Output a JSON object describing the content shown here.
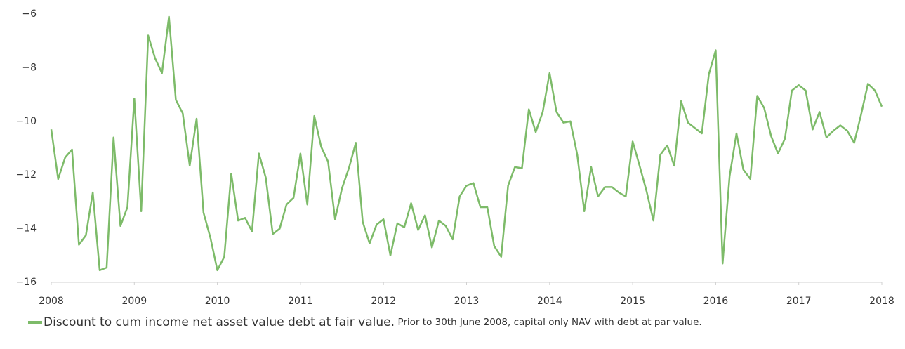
{
  "chart_data": {
    "type": "line",
    "x": [
      2008,
      2008.083,
      2008.167,
      2008.25,
      2008.333,
      2008.417,
      2008.5,
      2008.583,
      2008.667,
      2008.75,
      2008.833,
      2008.917,
      2009,
      2009.083,
      2009.167,
      2009.25,
      2009.333,
      2009.417,
      2009.5,
      2009.583,
      2009.667,
      2009.75,
      2009.833,
      2009.917,
      2010,
      2010.083,
      2010.167,
      2010.25,
      2010.333,
      2010.417,
      2010.5,
      2010.583,
      2010.667,
      2010.75,
      2010.833,
      2010.917,
      2011,
      2011.083,
      2011.167,
      2011.25,
      2011.333,
      2011.417,
      2011.5,
      2011.583,
      2011.667,
      2011.75,
      2011.833,
      2011.917,
      2012,
      2012.083,
      2012.167,
      2012.25,
      2012.333,
      2012.417,
      2012.5,
      2012.583,
      2012.667,
      2012.75,
      2012.833,
      2012.917,
      2013,
      2013.083,
      2013.167,
      2013.25,
      2013.333,
      2013.417,
      2013.5,
      2013.583,
      2013.667,
      2013.75,
      2013.833,
      2013.917,
      2014,
      2014.083,
      2014.167,
      2014.25,
      2014.333,
      2014.417,
      2014.5,
      2014.583,
      2014.667,
      2014.75,
      2014.833,
      2014.917,
      2015,
      2015.083,
      2015.167,
      2015.25,
      2015.333,
      2015.417,
      2015.5,
      2015.583,
      2015.667,
      2015.75,
      2015.833,
      2015.917,
      2016,
      2016.083,
      2016.167,
      2016.25,
      2016.333,
      2016.417,
      2016.5,
      2016.583,
      2016.667,
      2016.75,
      2016.833,
      2016.917,
      2017,
      2017.083,
      2017.167,
      2017.25,
      2017.333,
      2017.417,
      2017.5,
      2017.583,
      2017.667,
      2017.75,
      2017.833,
      2017.917,
      2018
    ],
    "series": [
      {
        "name": "Discount to cum income net asset value debt at fair value.",
        "color": "#7dbb69",
        "values": [
          -10.3,
          -12.15,
          -11.35,
          -11.05,
          -14.6,
          -14.25,
          -12.65,
          -15.55,
          -15.45,
          -10.6,
          -13.9,
          -13.2,
          -9.15,
          -13.35,
          -6.8,
          -7.65,
          -8.2,
          -6.1,
          -9.2,
          -9.7,
          -11.65,
          -9.9,
          -13.4,
          -14.35,
          -15.55,
          -15.05,
          -11.95,
          -13.7,
          -13.6,
          -14.1,
          -11.2,
          -12.1,
          -14.2,
          -14.0,
          -13.1,
          -12.85,
          -11.2,
          -13.1,
          -9.8,
          -10.95,
          -11.5,
          -13.65,
          -12.5,
          -11.75,
          -10.8,
          -13.75,
          -14.55,
          -13.85,
          -13.65,
          -15.0,
          -13.8,
          -13.95,
          -13.05,
          -14.05,
          -13.5,
          -14.7,
          -13.7,
          -13.9,
          -14.4,
          -12.8,
          -12.4,
          -12.3,
          -13.2,
          -13.2,
          -14.65,
          -15.05,
          -12.4,
          -11.7,
          -11.75,
          -9.55,
          -10.4,
          -9.65,
          -8.2,
          -9.65,
          -10.05,
          -10.0,
          -11.25,
          -13.35,
          -11.7,
          -12.8,
          -12.45,
          -12.45,
          -12.65,
          -12.8,
          -10.75,
          -11.65,
          -12.6,
          -13.7,
          -11.25,
          -10.9,
          -11.65,
          -9.25,
          -10.05,
          -10.25,
          -10.45,
          -8.25,
          -7.35,
          -15.3,
          -12.05,
          -10.45,
          -11.8,
          -12.15,
          -9.05,
          -9.5,
          -10.55,
          -11.2,
          -10.65,
          -8.85,
          -8.65,
          -8.85,
          -10.3,
          -9.65,
          -10.6,
          -10.35,
          -10.15,
          -10.35,
          -10.8,
          -9.75,
          -8.6,
          -8.85,
          -9.45
        ]
      }
    ],
    "legend_note": "Prior to 30th June 2008, capital only NAV with debt at par value.",
    "xlim": [
      2008,
      2018
    ],
    "xticks": [
      2008,
      2009,
      2010,
      2011,
      2012,
      2013,
      2014,
      2015,
      2016,
      2017,
      2018
    ],
    "ylim": [
      -16,
      -6
    ],
    "yticks": [
      {
        "value": -6,
        "label": "−6"
      },
      {
        "value": -8,
        "label": "−8"
      },
      {
        "value": -10,
        "label": "−10"
      },
      {
        "value": -12,
        "label": "−12"
      },
      {
        "value": -14,
        "label": "−14"
      },
      {
        "value": -16,
        "label": "−16"
      }
    ],
    "grid": false
  }
}
